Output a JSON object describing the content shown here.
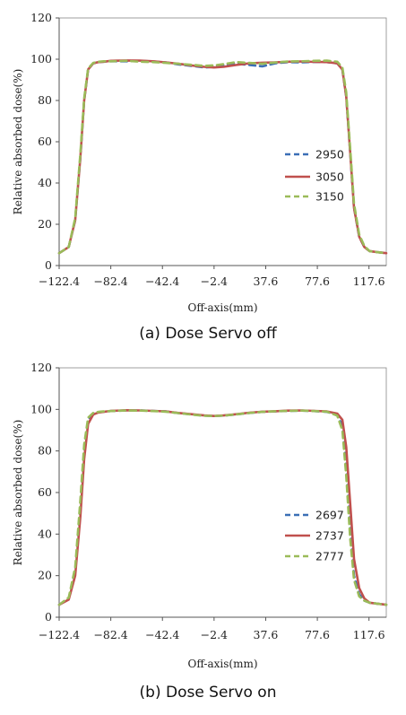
{
  "colors": {
    "series1": "#3b6fb6",
    "series2": "#c0504d",
    "series3": "#9bbb59"
  },
  "chart_data": [
    {
      "type": "line",
      "caption": "(a)  Dose  Servo  off",
      "xlabel": "Off-axis(mm)",
      "ylabel": "Relative absorbed dose(%)",
      "xlim": [
        -122.4,
        131
      ],
      "ylim": [
        0,
        120
      ],
      "xticks": [
        "-122.4",
        "-82.4",
        "-42.4",
        "-2.4",
        "37.6",
        "77.6",
        "117.6"
      ],
      "yticks": [
        "0",
        "20",
        "40",
        "60",
        "80",
        "100",
        "120"
      ],
      "legend": "right-middle",
      "series": [
        {
          "name": "2950",
          "style": "dashed",
          "color": "#3b6fb6",
          "x": [
            -122.4,
            -115,
            -110,
            -106,
            -103,
            -100,
            -96,
            -92,
            -88,
            -82.4,
            -70,
            -60,
            -50,
            -40,
            -30,
            -20,
            -10,
            -2.4,
            5,
            15,
            25,
            35,
            45,
            55,
            65,
            75,
            85,
            93,
            97,
            100,
            103,
            106,
            110,
            114,
            118,
            124,
            131
          ],
          "y": [
            6,
            9,
            22,
            52,
            80,
            95,
            98,
            98.6,
            98.8,
            99,
            99,
            99.2,
            98.9,
            98.5,
            97.5,
            96.8,
            96,
            96.3,
            97.2,
            97.8,
            97.2,
            96.5,
            98,
            98.6,
            98.5,
            98.7,
            98.6,
            98,
            95,
            82,
            55,
            28,
            14,
            9,
            7,
            6.5,
            6
          ]
        },
        {
          "name": "3050",
          "style": "solid",
          "color": "#c0504d",
          "x": [
            -122.4,
            -115,
            -110,
            -106,
            -103,
            -100,
            -96,
            -92,
            -88,
            -82.4,
            -70,
            -60,
            -50,
            -40,
            -30,
            -20,
            -10,
            -2.4,
            5,
            15,
            25,
            35,
            45,
            55,
            65,
            75,
            85,
            93,
            97,
            100,
            103,
            106,
            110,
            114,
            118,
            124,
            131
          ],
          "y": [
            6,
            9,
            22,
            52,
            80,
            95,
            98,
            98.6,
            98.8,
            99.2,
            99.4,
            99.3,
            99,
            98.5,
            97.8,
            97,
            96.3,
            96,
            96.3,
            97.2,
            98,
            98.3,
            98.5,
            98.8,
            98.9,
            98.7,
            98.6,
            98,
            95,
            82,
            55,
            28,
            14,
            9,
            7,
            6.5,
            6
          ]
        },
        {
          "name": "3150",
          "style": "dashed",
          "color": "#9bbb59",
          "x": [
            -122.4,
            -115,
            -110,
            -106,
            -103,
            -100,
            -96,
            -92,
            -88,
            -82.4,
            -70,
            -60,
            -50,
            -40,
            -30,
            -20,
            -10,
            -2.4,
            5,
            15,
            25,
            35,
            45,
            55,
            65,
            75,
            85,
            93,
            97,
            100,
            103,
            106,
            110,
            114,
            118,
            124,
            131
          ],
          "y": [
            6,
            9,
            23,
            54,
            81,
            95.5,
            98.2,
            98.8,
            99,
            99,
            99.2,
            98.8,
            98.6,
            98.2,
            97.8,
            97.3,
            96.8,
            97,
            97.6,
            98.6,
            98.2,
            97.8,
            98.4,
            98.9,
            99,
            99.2,
            99.3,
            98.8,
            96,
            84,
            57,
            30,
            15,
            9.5,
            7,
            6.5,
            6
          ]
        }
      ]
    },
    {
      "type": "line",
      "caption": "(b)  Dose  Servo  on",
      "xlabel": "Off-axis(mm)",
      "ylabel": "Relative absorbed dose(%)",
      "xlim": [
        -122.4,
        131
      ],
      "ylim": [
        0,
        120
      ],
      "xticks": [
        "-122.4",
        "-82.4",
        "-42.4",
        "-2.4",
        "37.6",
        "77.6",
        "117.6"
      ],
      "yticks": [
        "0",
        "20",
        "40",
        "60",
        "80",
        "100",
        "120"
      ],
      "legend": "right-middle",
      "series": [
        {
          "name": "2697",
          "style": "dashed",
          "color": "#3b6fb6",
          "x": [
            -122.4,
            -115,
            -110,
            -106,
            -103,
            -100,
            -96,
            -92,
            -88,
            -82.4,
            -70,
            -60,
            -50,
            -40,
            -30,
            -20,
            -10,
            -2.4,
            5,
            15,
            25,
            35,
            45,
            55,
            65,
            75,
            85,
            93,
            97,
            100,
            103,
            106,
            110,
            114,
            118,
            124,
            131
          ],
          "y": [
            6,
            9,
            22,
            52,
            80,
            95,
            98,
            98.6,
            98.9,
            99.2,
            99.5,
            99.5,
            99.3,
            99,
            98.2,
            97.6,
            97,
            96.8,
            97,
            97.6,
            98.3,
            98.8,
            99,
            99.3,
            99.4,
            99.2,
            98.8,
            97.5,
            92,
            72,
            42,
            20,
            11,
            8,
            7,
            6.5,
            6
          ]
        },
        {
          "name": "2737",
          "style": "solid",
          "color": "#c0504d",
          "x": [
            -122.4,
            -115,
            -110,
            -106,
            -103,
            -100,
            -96,
            -92,
            -88,
            -82.4,
            -70,
            -60,
            -50,
            -40,
            -30,
            -20,
            -10,
            -2.4,
            5,
            15,
            25,
            35,
            45,
            55,
            65,
            75,
            85,
            93,
            97,
            100,
            103,
            106,
            110,
            114,
            118,
            124,
            131
          ],
          "y": [
            6,
            8.5,
            20,
            48,
            76,
            93,
            97.5,
            98.5,
            98.8,
            99.3,
            99.6,
            99.5,
            99.3,
            99,
            98.3,
            97.7,
            97.1,
            96.8,
            97.1,
            97.7,
            98.4,
            98.9,
            99.1,
            99.4,
            99.5,
            99.3,
            99,
            98,
            95,
            82,
            55,
            28,
            14,
            9,
            7,
            6.5,
            6
          ]
        },
        {
          "name": "2777",
          "style": "dashed",
          "color": "#9bbb59",
          "x": [
            -122.4,
            -115,
            -110,
            -106,
            -103,
            -100,
            -96,
            -92,
            -88,
            -82.4,
            -70,
            -60,
            -50,
            -40,
            -30,
            -20,
            -10,
            -2.4,
            5,
            15,
            25,
            35,
            45,
            55,
            65,
            75,
            85,
            93,
            97,
            100,
            103,
            106,
            110,
            114,
            118,
            124,
            131
          ],
          "y": [
            6,
            9.5,
            24,
            56,
            83,
            96,
            98.3,
            98.8,
            99,
            99.2,
            99.5,
            99.4,
            99.2,
            98.9,
            98.2,
            97.5,
            96.9,
            96.8,
            97,
            97.6,
            98.3,
            98.8,
            99.1,
            99.3,
            99.4,
            99.2,
            98.9,
            97,
            90,
            68,
            38,
            18,
            10,
            8,
            7,
            6.5,
            6
          ]
        }
      ]
    }
  ]
}
